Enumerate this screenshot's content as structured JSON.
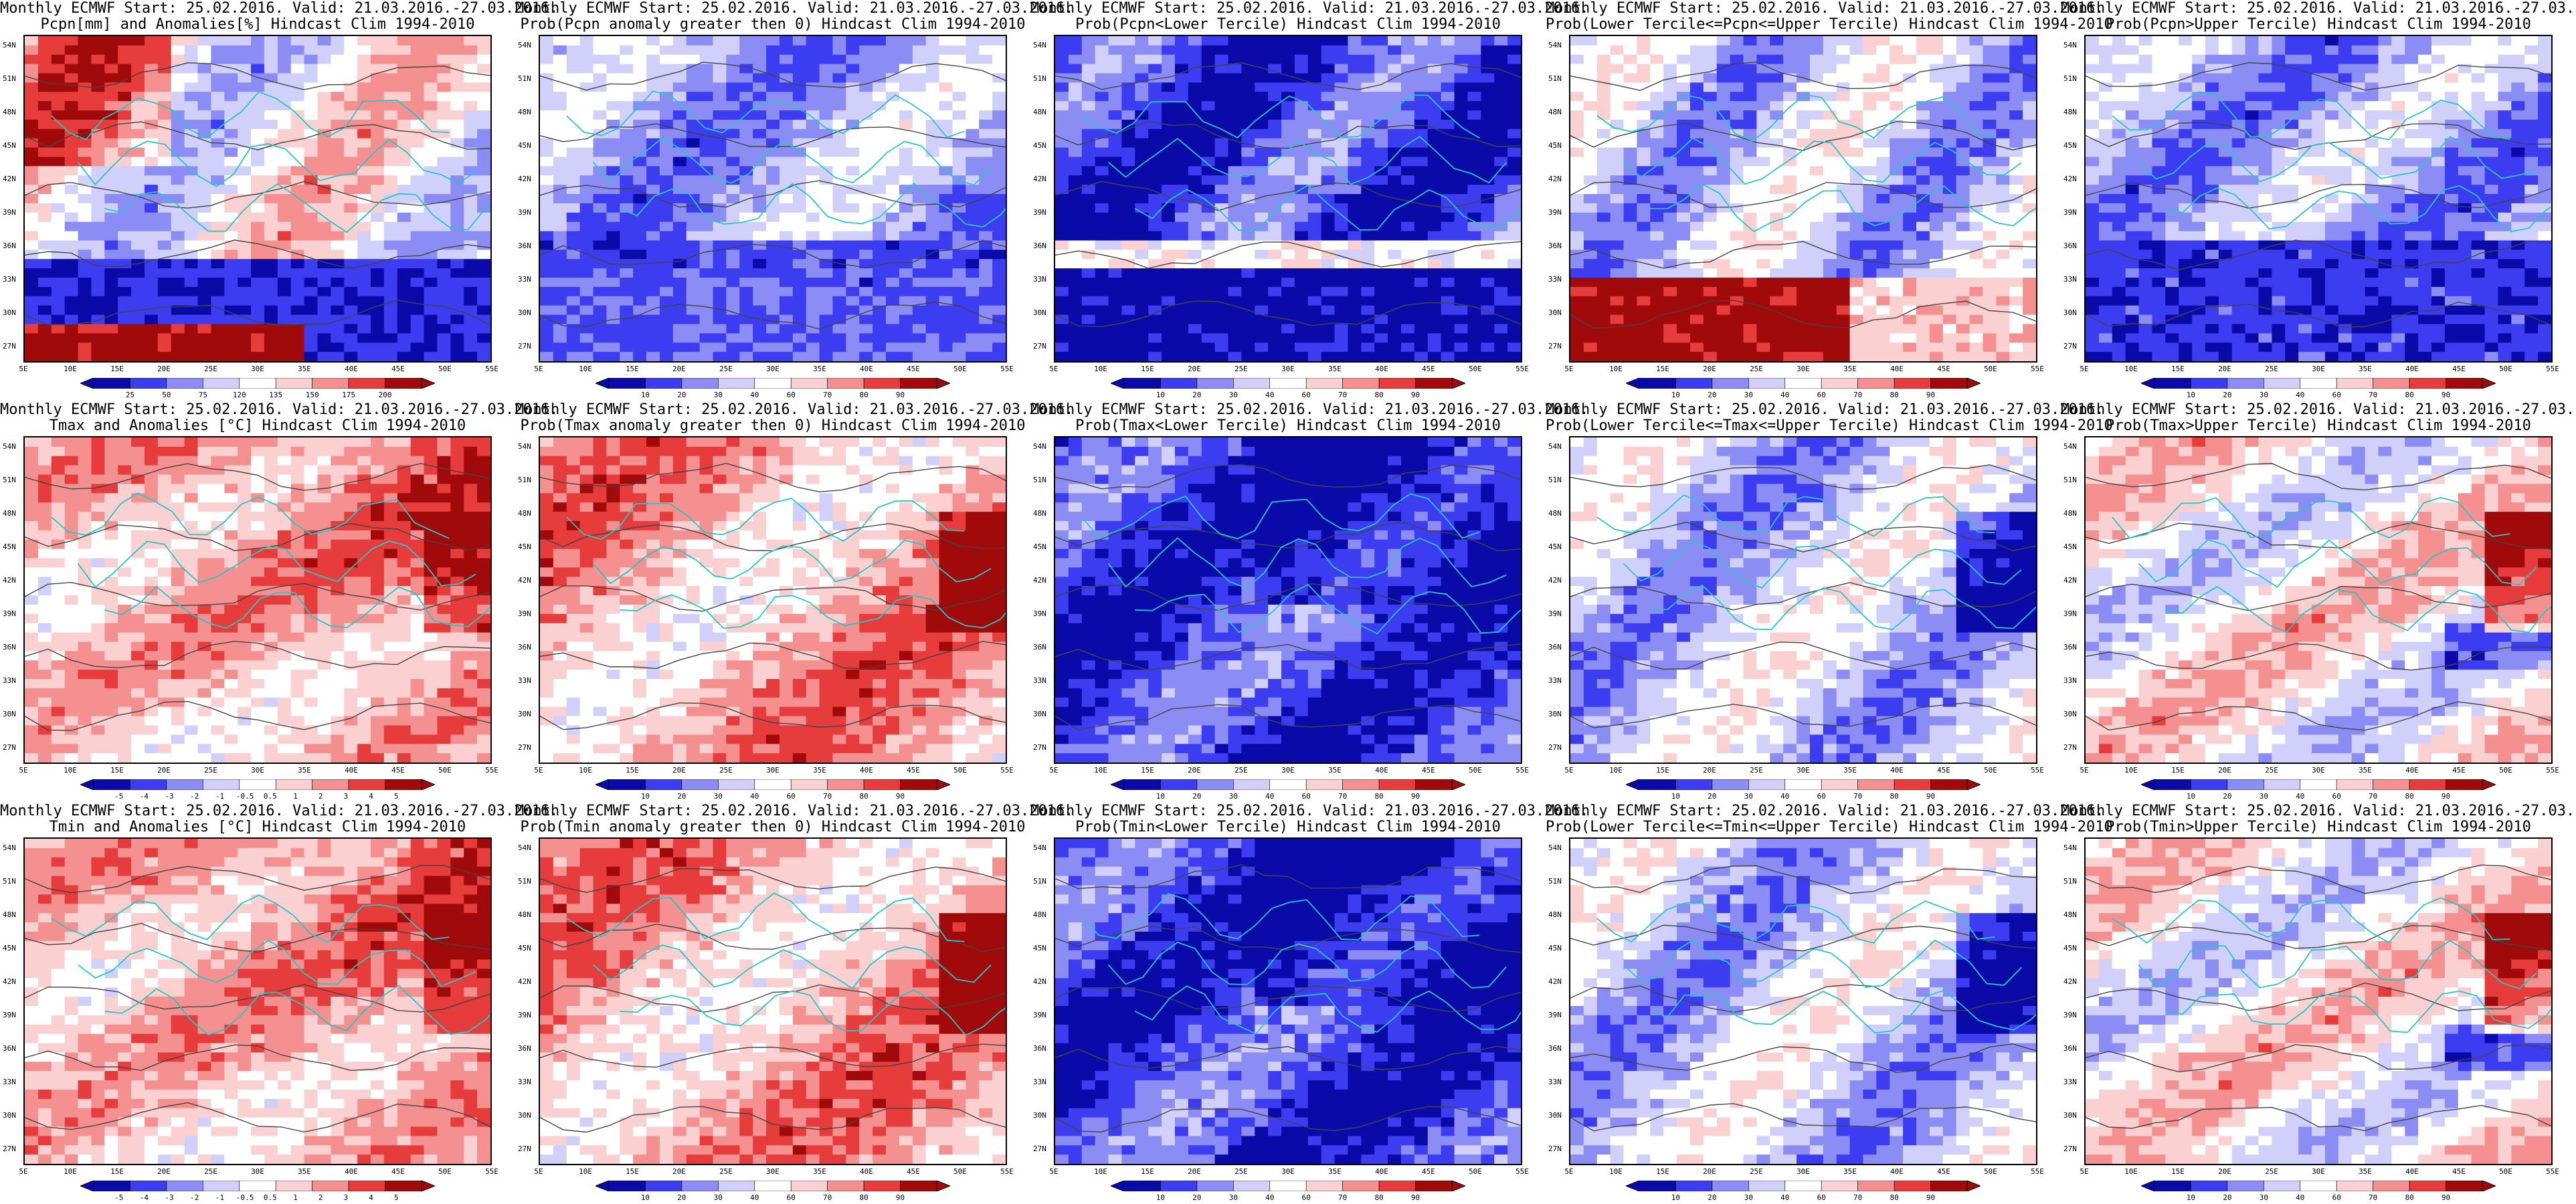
{
  "common": {
    "title_line1": "Monthly ECMWF Start: 25.02.2016. Valid: 21.03.2016.-27.03.2016.",
    "lat_labels": [
      "54N",
      "51N",
      "48N",
      "45N",
      "42N",
      "39N",
      "36N",
      "33N",
      "30N",
      "27N"
    ],
    "lon_labels": [
      "5E",
      "10E",
      "15E",
      "20E",
      "25E",
      "30E",
      "35E",
      "40E",
      "45E",
      "50E",
      "55E"
    ]
  },
  "colors": {
    "dark_blue": "#0a0aa8",
    "mid_blue": "#3c3cf0",
    "light_blue": "#8c8cf5",
    "pale_blue": "#d0d0fa",
    "white": "#ffffff",
    "pale_red": "#fad0d0",
    "light_red": "#f59090",
    "mid_red": "#e63c3c",
    "dark_red": "#a00a0a",
    "coast": "#23c8c8",
    "contour": "#444444"
  },
  "panels": [
    {
      "id": "pcpn-anom",
      "title_line2": "Pcpn[mm] and Anomalies[%] Hindcast Clim 1994-2010",
      "legend_ticks": [
        "25",
        "50",
        "75",
        "120",
        "135",
        "150",
        "175",
        "200"
      ],
      "pattern": "pcpn"
    },
    {
      "id": "pcpn-prob-pos",
      "title_line2": "Prob(Pcpn anomaly greater then 0) Hindcast Clim 1994-2010",
      "legend_ticks": [
        "10",
        "20",
        "30",
        "40",
        "60",
        "70",
        "80",
        "90"
      ],
      "pattern": "pcpn-prob"
    },
    {
      "id": "pcpn-prob-lower",
      "title_line2": "Prob(Pcpn<Lower Tercile) Hindcast Clim 1994-2010",
      "legend_ticks": [
        "10",
        "20",
        "30",
        "40",
        "60",
        "70",
        "80",
        "90"
      ],
      "pattern": "pcpn-lower"
    },
    {
      "id": "pcpn-prob-middle",
      "title_line2": "Prob(Lower Tercile<=Pcpn<=Upper Tercile) Hindcast Clim 1994-2010",
      "legend_ticks": [
        "10",
        "20",
        "30",
        "40",
        "60",
        "70",
        "80",
        "90"
      ],
      "pattern": "pcpn-middle"
    },
    {
      "id": "pcpn-prob-upper",
      "title_line2": "Prob(Pcpn>Upper Tercile) Hindcast Clim 1994-2010",
      "legend_ticks": [
        "10",
        "20",
        "30",
        "40",
        "60",
        "70",
        "80",
        "90"
      ],
      "pattern": "pcpn-upper"
    },
    {
      "id": "tmax-anom",
      "title_line2": "Tmax and Anomalies [°C] Hindcast Clim 1994-2010",
      "legend_ticks": [
        "-5",
        "-4",
        "-3",
        "-2",
        "-1",
        "-0.5",
        "0.5",
        "1",
        "2",
        "3",
        "4",
        "5"
      ],
      "pattern": "warm"
    },
    {
      "id": "tmax-prob-pos",
      "title_line2": "Prob(Tmax anomaly greater then 0) Hindcast Clim 1994-2010",
      "legend_ticks": [
        "10",
        "20",
        "30",
        "40",
        "60",
        "70",
        "80",
        "90"
      ],
      "pattern": "warm-prob"
    },
    {
      "id": "tmax-prob-lower",
      "title_line2": "Prob(Tmax<Lower Tercile) Hindcast Clim 1994-2010",
      "legend_ticks": [
        "10",
        "20",
        "30",
        "40",
        "60",
        "70",
        "80",
        "90"
      ],
      "pattern": "cold"
    },
    {
      "id": "tmax-prob-middle",
      "title_line2": "Prob(Lower Tercile<=Tmax<=Upper Tercile) Hindcast Clim 1994-2010",
      "legend_ticks": [
        "10",
        "20",
        "30",
        "40",
        "60",
        "70",
        "80",
        "90"
      ],
      "pattern": "mixed-blue"
    },
    {
      "id": "tmax-prob-upper",
      "title_line2": "Prob(Tmax>Upper Tercile) Hindcast Clim 1994-2010",
      "legend_ticks": [
        "10",
        "20",
        "30",
        "40",
        "60",
        "70",
        "80",
        "90"
      ],
      "pattern": "upper-temp"
    },
    {
      "id": "tmin-anom",
      "title_line2": "Tmin and Anomalies [°C] Hindcast Clim 1994-2010",
      "legend_ticks": [
        "-5",
        "-4",
        "-3",
        "-2",
        "-1",
        "-0.5",
        "0.5",
        "1",
        "2",
        "3",
        "4",
        "5"
      ],
      "pattern": "warm"
    },
    {
      "id": "tmin-prob-pos",
      "title_line2": "Prob(Tmin anomaly greater then 0) Hindcast Clim 1994-2010",
      "legend_ticks": [
        "10",
        "20",
        "30",
        "40",
        "60",
        "70",
        "80",
        "90"
      ],
      "pattern": "warm-prob"
    },
    {
      "id": "tmin-prob-lower",
      "title_line2": "Prob(Tmin<Lower Tercile) Hindcast Clim 1994-2010",
      "legend_ticks": [
        "10",
        "20",
        "30",
        "40",
        "60",
        "70",
        "80",
        "90"
      ],
      "pattern": "cold"
    },
    {
      "id": "tmin-prob-middle",
      "title_line2": "Prob(Lower Tercile<=Tmin<=Upper Tercile) Hindcast Clim 1994-2010",
      "legend_ticks": [
        "10",
        "20",
        "30",
        "40",
        "60",
        "70",
        "80",
        "90"
      ],
      "pattern": "mixed-blue"
    },
    {
      "id": "tmin-prob-upper",
      "title_line2": "Prob(Tmin>Upper Tercile) Hindcast Clim 1994-2010",
      "legend_ticks": [
        "10",
        "20",
        "30",
        "40",
        "60",
        "70",
        "80",
        "90"
      ],
      "pattern": "upper-temp"
    }
  ]
}
